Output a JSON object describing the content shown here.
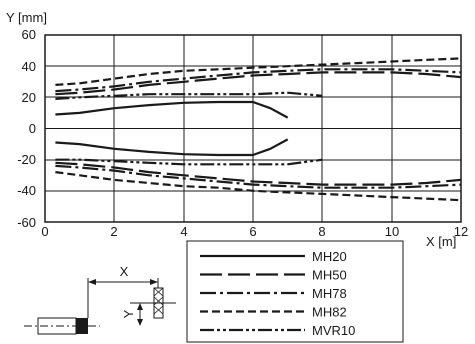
{
  "chart_data": {
    "type": "line",
    "xlabel": "X [m]",
    "ylabel": "Y [mm]",
    "xlim": [
      0,
      12
    ],
    "ylim": [
      -60,
      60
    ],
    "xticks": [
      "0",
      "2",
      "4",
      "6",
      "8",
      "10",
      "12"
    ],
    "yticks": [
      "60",
      "40",
      "20",
      "0",
      "-20",
      "-40",
      "-60"
    ],
    "grid": true,
    "legend_position": "bottom-right",
    "series": [
      {
        "name": "MH20",
        "dash": "solid",
        "color": "#1a1a1a",
        "upper": {
          "x": [
            0.3,
            1,
            2,
            3,
            4,
            5,
            6,
            6.5,
            7
          ],
          "y": [
            9,
            10,
            13,
            15,
            16.5,
            17,
            17,
            13,
            7
          ]
        },
        "lower": {
          "x": [
            0.3,
            1,
            2,
            3,
            4,
            5,
            6,
            6.5,
            7
          ],
          "y": [
            -9,
            -10,
            -13,
            -15,
            -16.5,
            -17,
            -17,
            -13,
            -7
          ]
        }
      },
      {
        "name": "MH50",
        "dash": "longdash",
        "color": "#1a1a1a",
        "upper": {
          "x": [
            0.3,
            1,
            2,
            3,
            4,
            5,
            6,
            7,
            8,
            9,
            10,
            11,
            12
          ],
          "y": [
            22,
            23,
            25,
            28,
            30,
            32,
            34,
            35,
            36,
            36,
            36,
            35,
            33
          ]
        },
        "lower": {
          "x": [
            0.3,
            1,
            2,
            3,
            4,
            5,
            6,
            7,
            8,
            9,
            10,
            11,
            12
          ],
          "y": [
            -22,
            -23,
            -25,
            -28,
            -30,
            -32,
            -34,
            -35,
            -36,
            -36,
            -36,
            -35,
            -33
          ]
        }
      },
      {
        "name": "MH78",
        "dash": "dashdot",
        "color": "#1a1a1a",
        "upper": {
          "x": [
            0.3,
            1,
            2,
            3,
            4,
            5,
            6,
            7,
            8,
            9,
            10,
            11,
            12
          ],
          "y": [
            24,
            25,
            27,
            30,
            32,
            34,
            36,
            37,
            38,
            38,
            38,
            37,
            36
          ]
        },
        "lower": {
          "x": [
            0.3,
            1,
            2,
            3,
            4,
            5,
            6,
            7,
            8,
            9,
            10,
            11,
            12
          ],
          "y": [
            -24,
            -25,
            -27,
            -30,
            -32,
            -34,
            -36,
            -37,
            -38,
            -38,
            -38,
            -37,
            -36
          ]
        }
      },
      {
        "name": "MH82",
        "dash": "dashed",
        "color": "#1a1a1a",
        "upper": {
          "x": [
            0.3,
            1,
            2,
            3,
            4,
            5,
            6,
            7,
            8,
            9,
            10,
            11,
            12
          ],
          "y": [
            28,
            29,
            32,
            35,
            37,
            38,
            39,
            40,
            41,
            42,
            43,
            44,
            45
          ]
        },
        "lower": {
          "x": [
            0.3,
            1,
            2,
            3,
            4,
            5,
            6,
            7,
            8,
            9,
            10,
            11,
            12
          ],
          "y": [
            -28,
            -30,
            -33,
            -35,
            -37,
            -38,
            -40,
            -41,
            -42,
            -43,
            -44,
            -45,
            -46
          ]
        }
      },
      {
        "name": "MVR10",
        "dash": "dashdotdot",
        "color": "#1a1a1a",
        "upper": {
          "x": [
            0.3,
            1,
            2,
            3,
            4,
            5,
            6,
            7,
            8
          ],
          "y": [
            19,
            20,
            21,
            22,
            22,
            22,
            22,
            23,
            21
          ]
        },
        "lower": {
          "x": [
            0.3,
            1,
            2,
            3,
            4,
            5,
            6,
            7,
            8
          ],
          "y": [
            -20,
            -20,
            -21,
            -22,
            -23,
            -23,
            -23,
            -23,
            -20
          ]
        }
      }
    ]
  },
  "diagram": {
    "x_label": "X",
    "y_label": "Y"
  }
}
